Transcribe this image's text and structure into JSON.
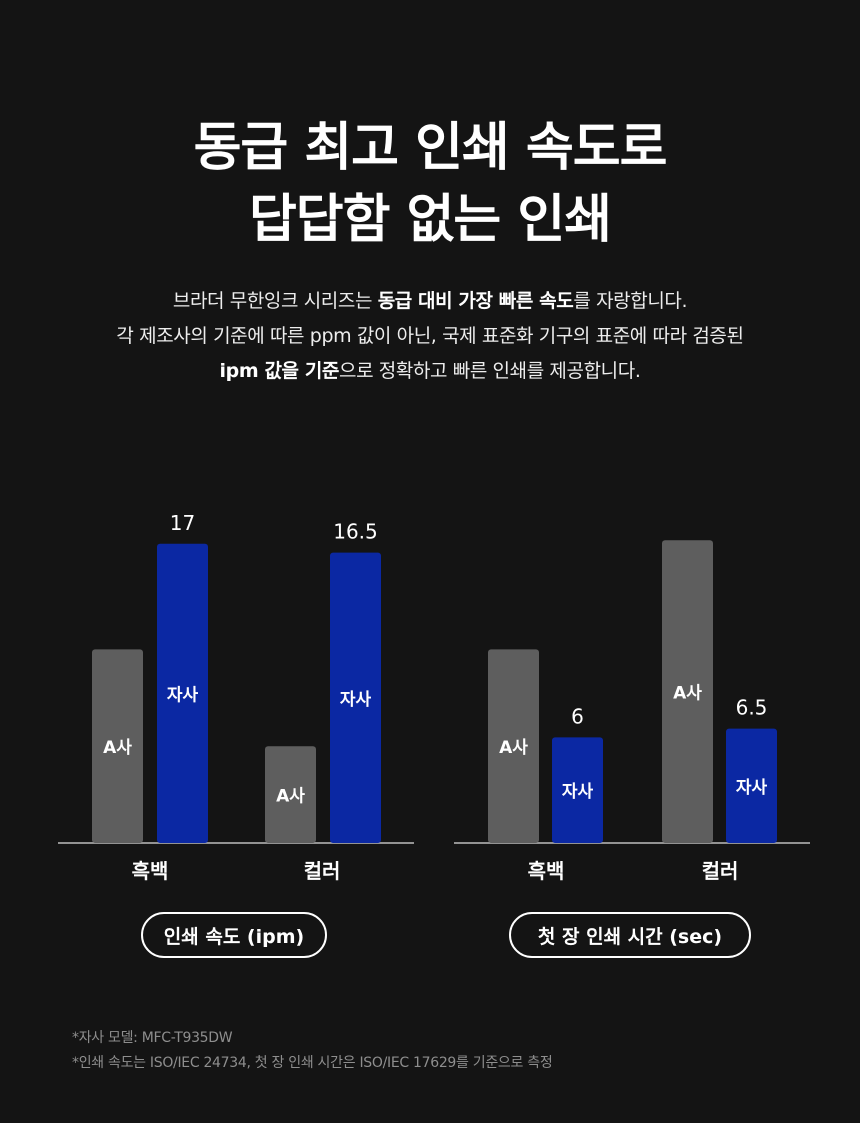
{
  "headline": {
    "line1": "동급 최고 인쇄 속도로",
    "line2": "답답함 없는 인쇄"
  },
  "description": {
    "line1_pre": "브라더 무한잉크 시리즈는 ",
    "line1_bold": "동급 대비 가장 빠른 속도",
    "line1_post": "를 자랑합니다.",
    "line2": "각 제조사의 기준에 따른 ppm 값이 아닌, 국제 표준화 기구의 표준에 따라 검증된",
    "line3_bold": "ipm 값을 기준",
    "line3_post": "으로 정확하고 빠른 인쇄를 제공합니다."
  },
  "chart_data": [
    {
      "type": "bar",
      "title": "인쇄 속도 (ipm)",
      "categories": [
        "흑백",
        "컬러"
      ],
      "series": [
        {
          "name": "A사",
          "values": [
            11,
            5.5
          ],
          "color": "#5e5e5e",
          "value_labels_shown": false
        },
        {
          "name": "자사",
          "values": [
            17,
            16.5
          ],
          "color": "#0b28a3",
          "value_labels": [
            "17",
            "16.5"
          ]
        }
      ],
      "ylim": [
        0,
        18
      ]
    },
    {
      "type": "bar",
      "title": "첫 장 인쇄 시간 (sec)",
      "categories": [
        "흑백",
        "컬러"
      ],
      "series": [
        {
          "name": "A사",
          "values": [
            11,
            17.2
          ],
          "color": "#5e5e5e",
          "value_labels_shown": false
        },
        {
          "name": "자사",
          "values": [
            6,
            6.5
          ],
          "color": "#0b28a3",
          "value_labels": [
            "6",
            "6.5"
          ]
        }
      ],
      "ylim": [
        0,
        18
      ]
    }
  ],
  "footnotes": [
    "*자사 모델: MFC-T935DW",
    "*인쇄 속도는 ISO/IEC 24734, 첫 장 인쇄 시간은 ISO/IEC 17629를 기준으로 측정"
  ],
  "colors": {
    "background": "#141414",
    "competitor_bar": "#5e5e5e",
    "brother_bar": "#0b28a3",
    "baseline": "#bdbdbd"
  }
}
